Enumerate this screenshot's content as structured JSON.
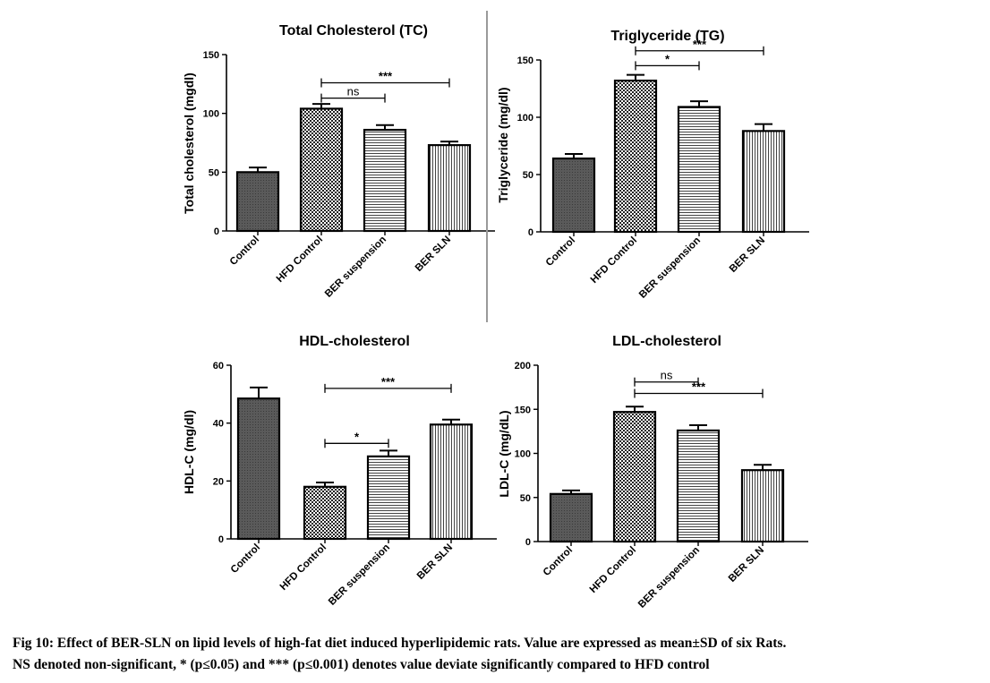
{
  "caption": {
    "line1": "Fig 10: Effect of BER-SLN on lipid levels of high-fat diet induced hyperlipidemic rats. Value are expressed as mean±SD of six Rats.",
    "line2": "NS denoted non-significant, * (p≤0.05) and *** (p≤0.001) denotes value deviate significantly compared to HFD control"
  },
  "colors": {
    "bar_stroke": "#000000",
    "bar_fill": "#ffffff",
    "dark_bar_fill": "#555555",
    "text": "#000000",
    "divider": "#9a9a9a"
  },
  "chart_data": [
    {
      "type": "bar",
      "title": "Total Cholesterol (TC)",
      "ylabel": "Total cholesterol (mgdl)",
      "xlabel": "",
      "categories": [
        "Control",
        "HFD Control",
        "BER suspension",
        "BER SLN"
      ],
      "values": [
        50,
        104,
        86,
        73
      ],
      "errors": [
        4,
        4,
        4,
        3
      ],
      "patterns": [
        "solid-dark",
        "checker",
        "horizontal-lines",
        "vertical-lines"
      ],
      "ylim": [
        0,
        150
      ],
      "yticks": [
        0,
        50,
        100,
        150
      ],
      "grid": false,
      "significance": [
        {
          "from": 1,
          "to": 2,
          "label": "ns",
          "y": 113
        },
        {
          "from": 1,
          "to": 3,
          "label": "***",
          "y": 126
        }
      ]
    },
    {
      "type": "bar",
      "title": "Triglyceride (TG)",
      "ylabel": "Triglyceride  (mg/dl)",
      "xlabel": "",
      "categories": [
        "Control",
        "HFD Control",
        "BER suspension",
        "BER SLN"
      ],
      "values": [
        64,
        132,
        109,
        88
      ],
      "errors": [
        4,
        5,
        5,
        6
      ],
      "patterns": [
        "solid-dark",
        "checker",
        "horizontal-lines",
        "vertical-lines"
      ],
      "ylim": [
        0,
        150
      ],
      "yticks": [
        0,
        50,
        100,
        150
      ],
      "grid": false,
      "significance": [
        {
          "from": 1,
          "to": 2,
          "label": "*",
          "y": 145
        },
        {
          "from": 1,
          "to": 3,
          "label": "***",
          "y": 158
        }
      ]
    },
    {
      "type": "bar",
      "title": "HDL-cholesterol",
      "ylabel": "HDL-C (mg/dl)",
      "xlabel": "",
      "categories": [
        "Control",
        "HFD Control",
        "BER suspension",
        "BER SLN"
      ],
      "values": [
        48.5,
        18,
        28.5,
        39.5
      ],
      "errors": [
        3.8,
        1.5,
        2,
        1.7
      ],
      "patterns": [
        "solid-dark",
        "checker",
        "horizontal-lines",
        "vertical-lines"
      ],
      "ylim": [
        0,
        60
      ],
      "yticks": [
        0,
        20,
        40,
        60
      ],
      "grid": false,
      "significance": [
        {
          "from": 1,
          "to": 2,
          "label": "*",
          "y": 33
        },
        {
          "from": 1,
          "to": 3,
          "label": "***",
          "y": 52
        }
      ]
    },
    {
      "type": "bar",
      "title": "LDL-cholesterol",
      "ylabel": "LDL-C (mg/dL)",
      "xlabel": "",
      "categories": [
        "Control",
        "HFD Control",
        "BER suspension",
        "BER SLN"
      ],
      "values": [
        54,
        147,
        126,
        81
      ],
      "errors": [
        4,
        6,
        6,
        6
      ],
      "patterns": [
        "solid-dark",
        "checker",
        "horizontal-lines",
        "vertical-lines"
      ],
      "ylim": [
        0,
        200
      ],
      "yticks": [
        0,
        50,
        100,
        150,
        200
      ],
      "grid": false,
      "significance": [
        {
          "from": 1,
          "to": 2,
          "label": "ns",
          "y": 181
        },
        {
          "from": 1,
          "to": 3,
          "label": "***",
          "y": 168
        }
      ]
    }
  ]
}
